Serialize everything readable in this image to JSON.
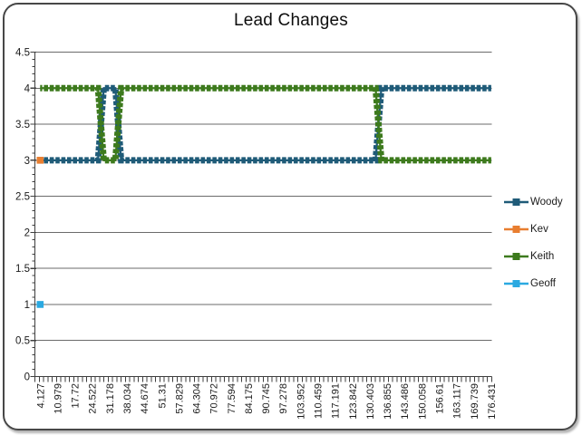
{
  "frame": {
    "background": "#ffffff",
    "border_color": "#474747"
  },
  "chart_data": {
    "type": "line",
    "title": "Lead Changes",
    "title_color": "#0d0d0d",
    "grid": "horizontal",
    "legend_position": "right",
    "axis_color": "#3f3f3f",
    "gridline_color": "#6b6b6b",
    "label_color": "#1a1a1a",
    "y_axis": {
      "min": 0,
      "max": 4.5,
      "step": 0.5,
      "tick_labels": [
        "0",
        "0.5",
        "1",
        "1.5",
        "2",
        "2.5",
        "3",
        "3.5",
        "4",
        "4.5"
      ],
      "minor_tick_step": 0.1
    },
    "x_axis": {
      "tick_labels": [
        "4.127",
        "10.979",
        "17.72",
        "24.522",
        "31.178",
        "38.034",
        "44.674",
        "51.31",
        "57.829",
        "64.304",
        "70.972",
        "77.594",
        "84.175",
        "90.745",
        "97.278",
        "103.952",
        "110.459",
        "117.191",
        "123.842",
        "130.403",
        "136.855",
        "143.486",
        "150.058",
        "156.61",
        "163.117",
        "169.739",
        "176.431"
      ],
      "points_per_label": 3,
      "label_rotation_deg": -90
    },
    "series": [
      {
        "name": "Woody",
        "color": "#1F5B78",
        "summary": "holds 3 from start; briefly rises to 4 around x=31.2-33.5; back to 3; rises to 4 near x=136.9 and stays at 4 to the end",
        "breakpoints": [
          [
            0,
            3
          ],
          [
            10,
            3
          ],
          [
            11,
            4
          ],
          [
            13,
            4
          ],
          [
            14,
            3
          ],
          [
            58,
            3
          ],
          [
            59,
            4
          ],
          [
            78,
            4
          ]
        ]
      },
      {
        "name": "Kev",
        "color": "#E87E30",
        "summary": "single point at start (x=4.127, y=3)",
        "breakpoints": [
          [
            0,
            3
          ]
        ]
      },
      {
        "name": "Keith",
        "color": "#3D7A1D",
        "summary": "holds 4 from start; briefly dips to 3 around x=31.2-33.5; back to 4; drops to 3 near x=136.9 and stays at 3 to the end",
        "breakpoints": [
          [
            0,
            4
          ],
          [
            10,
            4
          ],
          [
            11,
            3
          ],
          [
            13,
            3
          ],
          [
            14,
            4
          ],
          [
            58,
            4
          ],
          [
            59,
            3
          ],
          [
            78,
            3
          ]
        ]
      },
      {
        "name": "Geoff",
        "color": "#2BA9E1",
        "summary": "single point at start (x=4.127, y=1)",
        "breakpoints": [
          [
            0,
            1
          ]
        ]
      }
    ]
  }
}
